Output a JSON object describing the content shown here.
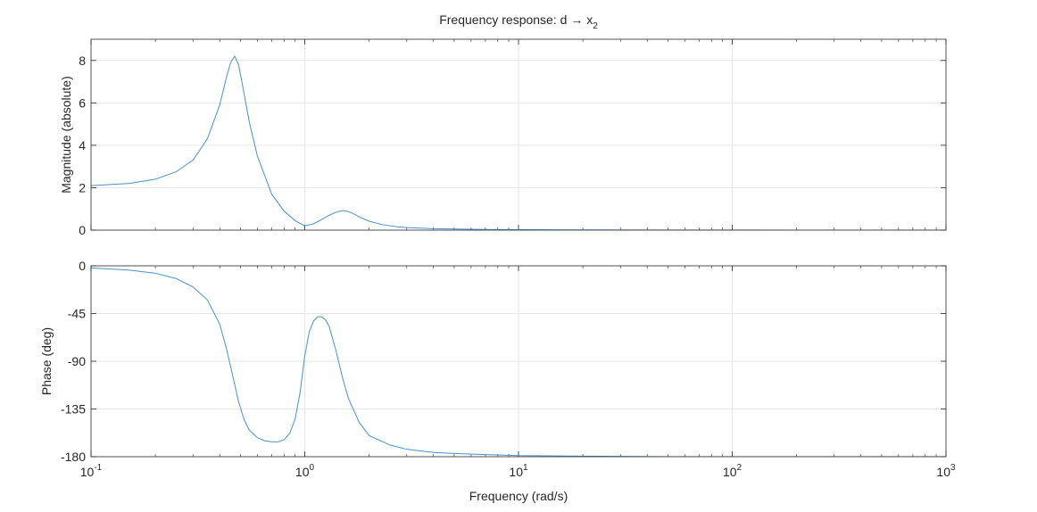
{
  "chart_data": [
    {
      "type": "line",
      "panel": "magnitude",
      "title_prefix": "Frequency response: d ",
      "title_arrow": "→",
      "title_var": " x",
      "title_sub": "2",
      "ylabel": "Magnitude (absolute)",
      "xscale": "log",
      "xlim": [
        0.1,
        1000
      ],
      "ylim": [
        0,
        9
      ],
      "yticks": [
        0,
        2,
        4,
        6,
        8
      ],
      "ytick_labels": [
        "0",
        "2",
        "4",
        "6",
        "8"
      ],
      "grid": true,
      "color": "#4a90c9",
      "series": [
        {
          "x": [
            0.1,
            0.15,
            0.2,
            0.25,
            0.3,
            0.35,
            0.4,
            0.43,
            0.45,
            0.47,
            0.49,
            0.51,
            0.55,
            0.6,
            0.7,
            0.8,
            0.9,
            1.0,
            1.1,
            1.2,
            1.3,
            1.4,
            1.5,
            1.6,
            1.7,
            1.8,
            2.0,
            2.3,
            2.7,
            3.0,
            4.0,
            5.0,
            7.0,
            10,
            20,
            50,
            100,
            300,
            1000
          ],
          "y": [
            2.1,
            2.2,
            2.4,
            2.75,
            3.3,
            4.3,
            5.9,
            7.2,
            7.9,
            8.2,
            7.8,
            6.9,
            5.1,
            3.5,
            1.7,
            0.9,
            0.45,
            0.2,
            0.3,
            0.5,
            0.7,
            0.85,
            0.92,
            0.88,
            0.76,
            0.62,
            0.42,
            0.26,
            0.16,
            0.12,
            0.07,
            0.05,
            0.03,
            0.02,
            0.01,
            0.005,
            0.003,
            0.001,
            0.0
          ]
        }
      ]
    },
    {
      "type": "line",
      "panel": "phase",
      "ylabel": "Phase (deg)",
      "xlabel": "Frequency (rad/s)",
      "xscale": "log",
      "xlim": [
        0.1,
        1000
      ],
      "ylim": [
        -180,
        0
      ],
      "yticks": [
        0,
        -45,
        -90,
        -135,
        -180
      ],
      "ytick_labels": [
        "0",
        "-45",
        "-90",
        "-135",
        "-180"
      ],
      "xtick_base": "10",
      "xtick_exponents": [
        "-1",
        "0",
        "1",
        "2",
        "3"
      ],
      "grid": true,
      "color": "#4a90c9",
      "series": [
        {
          "x": [
            0.1,
            0.15,
            0.2,
            0.25,
            0.3,
            0.35,
            0.4,
            0.43,
            0.45,
            0.47,
            0.49,
            0.52,
            0.55,
            0.6,
            0.65,
            0.7,
            0.75,
            0.8,
            0.85,
            0.9,
            0.95,
            1.0,
            1.05,
            1.1,
            1.15,
            1.2,
            1.25,
            1.3,
            1.4,
            1.5,
            1.6,
            1.8,
            2.0,
            2.5,
            3.0,
            4.0,
            5.0,
            7.0,
            10,
            20,
            50,
            100,
            300,
            1000
          ],
          "y": [
            -2,
            -4,
            -7,
            -12,
            -20,
            -32,
            -55,
            -78,
            -95,
            -112,
            -128,
            -145,
            -155,
            -162,
            -165,
            -166,
            -166,
            -164,
            -158,
            -145,
            -120,
            -85,
            -62,
            -52,
            -48,
            -48,
            -51,
            -57,
            -80,
            -105,
            -125,
            -148,
            -160,
            -169,
            -173,
            -176,
            -177,
            -178,
            -179,
            -179.5,
            -180,
            -180,
            -180,
            -180
          ]
        }
      ]
    }
  ]
}
